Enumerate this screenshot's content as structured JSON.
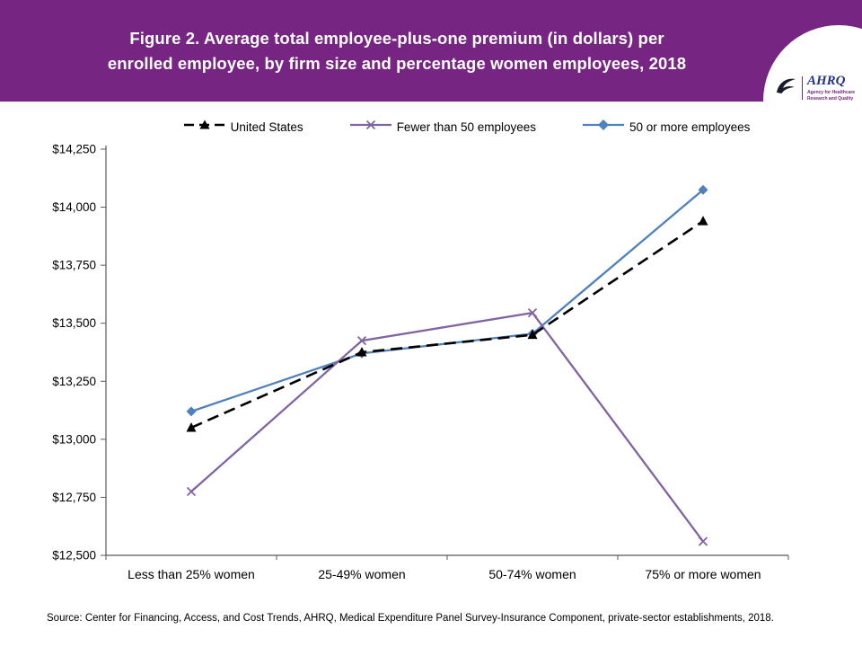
{
  "header": {
    "title_lines": [
      "Figure 2. Average total employee-plus-one premium (in dollars) per",
      "enrolled employee, by firm size and percentage women employees, 2018"
    ],
    "banner_color": "#772583"
  },
  "logo": {
    "org": "AHRQ",
    "tagline": "Agency for Healthcare Research and Quality"
  },
  "chart_data": {
    "type": "line",
    "categories": [
      "Less than 25% women",
      "25-49% women",
      "50-74% women",
      "75% or more women"
    ],
    "series": [
      {
        "name": "United States",
        "values": [
          13050,
          13375,
          13450,
          13940
        ],
        "color": "#000000",
        "dash": "13 7",
        "marker": "triangle"
      },
      {
        "name": "Fewer than 50 employees",
        "values": [
          12775,
          13425,
          13545,
          12560
        ],
        "color": "#8064A2",
        "dash": null,
        "marker": "x"
      },
      {
        "name": "50 or more employees",
        "values": [
          13120,
          13370,
          13455,
          14075
        ],
        "color": "#4F81BD",
        "dash": null,
        "marker": "diamond"
      }
    ],
    "ylim": [
      12500,
      14250
    ],
    "ytick_step": 250,
    "ytick_labels": [
      "$12,500",
      "$12,750",
      "$13,000",
      "$13,250",
      "$13,500",
      "$13,750",
      "$14,000",
      "$14,250"
    ],
    "grid": false,
    "legend_position": "top",
    "axis_color": "#595959"
  },
  "footer": {
    "source": "Source: Center for Financing, Access, and Cost Trends, AHRQ, Medical Expenditure Panel Survey-Insurance Component, private-sector establishments, 2018."
  }
}
